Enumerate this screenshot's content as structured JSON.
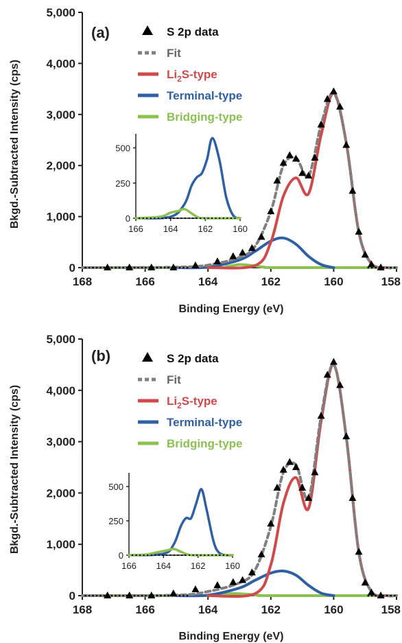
{
  "colors": {
    "data": "#000000",
    "fit": "#808080",
    "li2s": "#d04a4a",
    "terminal": "#2f5fa5",
    "bridging": "#8cc152",
    "axis": "#222222"
  },
  "chart_data": [
    {
      "type": "line",
      "panel_label": "(a)",
      "xlabel": "Binding Energy (eV)",
      "ylabel": "Bkgd.-Subtracted Intensity (cps)",
      "xlim": [
        168,
        158
      ],
      "ylim": [
        0,
        5000
      ],
      "x_reversed": true,
      "x_ticks": [
        168,
        166,
        164,
        162,
        160,
        158
      ],
      "x_tick_labels": [
        "168",
        "166",
        "164",
        "162",
        "160",
        "158"
      ],
      "y_ticks": [
        0,
        1000,
        2000,
        3000,
        4000,
        5000
      ],
      "y_tick_labels": [
        "0",
        "1,000",
        "2,000",
        "3,000",
        "4,000",
        "5,000"
      ],
      "legend": {
        "placement": "top-left",
        "entries": [
          {
            "key": "data",
            "label": "S 2p data",
            "style": "triangle"
          },
          {
            "key": "fit",
            "label": "Fit",
            "style": "dashed"
          },
          {
            "key": "li2s",
            "label_main": "Li",
            "label_sub": "2",
            "label_rest": "S-type",
            "style": "line"
          },
          {
            "key": "terminal",
            "label": "Terminal-type",
            "style": "line"
          },
          {
            "key": "bridging",
            "label": "Bridging-type",
            "style": "line"
          }
        ]
      },
      "series": [
        {
          "key": "data",
          "name": "S 2p data",
          "x": [
            167.2,
            166.5,
            165.8,
            165.1,
            164.4,
            163.7,
            163.2,
            162.9,
            162.6,
            162.3,
            162.0,
            161.8,
            161.6,
            161.4,
            161.2,
            161.0,
            160.8,
            160.6,
            160.4,
            160.2,
            160.0,
            159.8,
            159.6,
            159.4,
            159.2,
            159.0,
            158.8,
            158.5
          ],
          "y": [
            0,
            0,
            0,
            0,
            40,
            120,
            220,
            290,
            380,
            600,
            1100,
            1700,
            2050,
            2200,
            2130,
            1850,
            1800,
            2150,
            2800,
            3300,
            3450,
            3150,
            2400,
            1500,
            700,
            250,
            60,
            0
          ]
        },
        {
          "key": "fit",
          "name": "Fit",
          "x": [
            168,
            165,
            164.0,
            163.0,
            162.5,
            162.0,
            161.6,
            161.2,
            160.8,
            160.4,
            160.0,
            159.6,
            159.2,
            158.8,
            158.3,
            158
          ],
          "y": [
            0,
            10,
            50,
            200,
            420,
            1100,
            2000,
            2150,
            1800,
            2800,
            3420,
            2450,
            700,
            80,
            0,
            0
          ]
        },
        {
          "key": "li2s",
          "name": "Li2S-type",
          "x": [
            164,
            162.5,
            162.0,
            161.6,
            161.2,
            160.8,
            160.4,
            160.0,
            159.6,
            159.2,
            158.8,
            158.3
          ],
          "y": [
            0,
            40,
            500,
            1400,
            1760,
            1450,
            2600,
            3420,
            2450,
            700,
            80,
            0
          ]
        },
        {
          "key": "terminal",
          "name": "Terminal-type",
          "x": [
            165,
            164.0,
            163.0,
            162.5,
            162.0,
            161.6,
            161.2,
            160.8,
            160.4,
            160.0
          ],
          "y": [
            0,
            10,
            150,
            320,
            520,
            580,
            460,
            220,
            60,
            0
          ]
        },
        {
          "key": "bridging",
          "name": "Bridging-type",
          "x": [
            158,
            163.8,
            163.4,
            163.0,
            162.6,
            162.2,
            168,
            161.8
          ],
          "y": [
            0,
            0,
            20,
            60,
            40,
            10,
            0,
            0
          ]
        }
      ],
      "inset": {
        "xlim": [
          166,
          160
        ],
        "ylim": [
          0,
          600
        ],
        "x_ticks": [
          166,
          164,
          162,
          160
        ],
        "x_tick_labels": [
          "166",
          "164",
          "162",
          "160"
        ],
        "y_ticks": [
          0,
          250,
          500
        ],
        "y_tick_labels": [
          "0",
          "250",
          "500"
        ],
        "series": [
          {
            "key": "terminal",
            "x": [
              166,
              164.0,
              163.2,
              162.8,
              162.5,
              162.2,
              161.9,
              161.6,
              161.2,
              160.8,
              160.4,
              160.0
            ],
            "y": [
              0,
              10,
              100,
              230,
              290,
              320,
              420,
              570,
              420,
              150,
              20,
              0
            ]
          },
          {
            "key": "bridging",
            "x": [
              166,
              164.6,
              164.0,
              163.6,
              163.2,
              162.8,
              162.4,
              162.0,
              160.0
            ],
            "y": [
              0,
              10,
              40,
              50,
              65,
              35,
              5,
              0,
              0
            ]
          }
        ]
      }
    },
    {
      "type": "line",
      "panel_label": "(b)",
      "xlabel": "Binding Energy (eV)",
      "ylabel": "Bkgd.-Subtracted Intensity (cps)",
      "xlim": [
        168,
        158
      ],
      "ylim": [
        0,
        5000
      ],
      "x_reversed": true,
      "x_ticks": [
        168,
        166,
        164,
        162,
        160,
        158
      ],
      "x_tick_labels": [
        "168",
        "166",
        "164",
        "162",
        "160",
        "158"
      ],
      "y_ticks": [
        0,
        1000,
        2000,
        3000,
        4000,
        5000
      ],
      "y_tick_labels": [
        "0",
        "1,000",
        "2,000",
        "3,000",
        "4,000",
        "5,000"
      ],
      "legend": {
        "placement": "top-left",
        "entries": [
          {
            "key": "data",
            "label": "S 2p data",
            "style": "triangle"
          },
          {
            "key": "fit",
            "label": "Fit",
            "style": "dashed"
          },
          {
            "key": "li2s",
            "label_main": "Li",
            "label_sub": "2",
            "label_rest": "S-type",
            "style": "line"
          },
          {
            "key": "terminal",
            "label": "Terminal-type",
            "style": "line"
          },
          {
            "key": "bridging",
            "label": "Bridging-type",
            "style": "line"
          }
        ]
      },
      "series": [
        {
          "key": "data",
          "name": "S 2p data",
          "x": [
            167.2,
            166.5,
            165.8,
            165.1,
            164.4,
            163.7,
            163.2,
            162.9,
            162.6,
            162.3,
            162.0,
            161.8,
            161.6,
            161.4,
            161.2,
            161.0,
            160.8,
            160.6,
            160.4,
            160.2,
            160.0,
            159.8,
            159.6,
            159.4,
            159.2,
            159.0,
            158.8,
            158.5
          ],
          "y": [
            0,
            0,
            0,
            40,
            120,
            200,
            260,
            300,
            450,
            800,
            1400,
            2100,
            2450,
            2600,
            2500,
            2100,
            1900,
            2400,
            3500,
            4300,
            4550,
            4100,
            3100,
            1900,
            850,
            250,
            60,
            0
          ]
        },
        {
          "key": "fit",
          "name": "Fit",
          "x": [
            168,
            165,
            164.0,
            163.0,
            162.5,
            162.0,
            161.6,
            161.2,
            160.8,
            160.4,
            160.0,
            159.6,
            159.2,
            158.8,
            158.3,
            158
          ],
          "y": [
            0,
            10,
            80,
            250,
            500,
            1350,
            2400,
            2550,
            1900,
            3500,
            4500,
            3100,
            850,
            80,
            0,
            0
          ]
        },
        {
          "key": "li2s",
          "name": "Li2S-type",
          "x": [
            164,
            162.5,
            162.0,
            161.6,
            161.2,
            160.8,
            160.4,
            160.0,
            159.6,
            159.2,
            158.8,
            158.3
          ],
          "y": [
            0,
            40,
            600,
            1800,
            2300,
            1700,
            3400,
            4500,
            3100,
            850,
            80,
            0
          ]
        },
        {
          "key": "terminal",
          "name": "Terminal-type",
          "x": [
            165,
            164.0,
            163.0,
            162.5,
            162.0,
            161.6,
            161.2,
            160.8,
            160.4,
            160.0
          ],
          "y": [
            0,
            10,
            150,
            300,
            440,
            480,
            400,
            200,
            50,
            0
          ]
        },
        {
          "key": "bridging",
          "name": "Bridging-type",
          "x": [
            158,
            164.0,
            163.6,
            163.2,
            162.8,
            162.4,
            168,
            162.0
          ],
          "y": [
            0,
            0,
            20,
            40,
            30,
            10,
            0,
            0
          ]
        }
      ],
      "inset": {
        "xlim": [
          166,
          160
        ],
        "ylim": [
          0,
          600
        ],
        "x_ticks": [
          166,
          164,
          162,
          160
        ],
        "x_tick_labels": [
          "166",
          "164",
          "162",
          "160"
        ],
        "y_ticks": [
          0,
          250,
          500
        ],
        "y_tick_labels": [
          "0",
          "250",
          "500"
        ],
        "series": [
          {
            "key": "terminal",
            "x": [
              166,
              164.0,
              163.4,
              163.0,
              162.7,
              162.4,
              162.1,
              161.8,
              161.5,
              161.1,
              160.8,
              160.4,
              160.0
            ],
            "y": [
              0,
              10,
              80,
              210,
              270,
              270,
              380,
              480,
              330,
              100,
              20,
              0,
              0
            ]
          },
          {
            "key": "bridging",
            "x": [
              166,
              165.0,
              164.4,
              163.8,
              163.4,
              163.0,
              162.6,
              162.2,
              160.0
            ],
            "y": [
              0,
              5,
              20,
              35,
              45,
              25,
              5,
              0,
              0
            ]
          }
        ]
      }
    }
  ]
}
